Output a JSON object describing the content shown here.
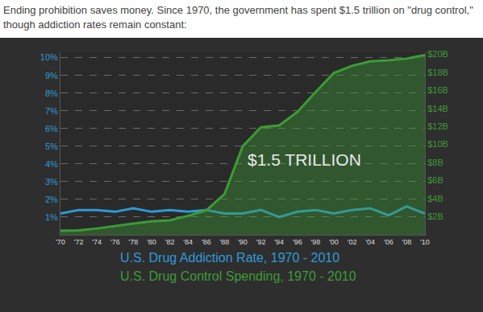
{
  "chart_data": {
    "type": "line",
    "title": "Ending prohibition saves money. Since 1970, the government has spent $1.5 trillion on \"drug control,\" though addiction rates remain constant:",
    "x": [
      1970,
      1972,
      1974,
      1976,
      1978,
      1980,
      1982,
      1984,
      1986,
      1988,
      1990,
      1992,
      1994,
      1996,
      1998,
      2000,
      2002,
      2004,
      2006,
      2008,
      2010
    ],
    "series": [
      {
        "name": "U.S. Drug Addiction Rate, 1970 - 2010",
        "type": "line",
        "color": "#2e9ad6",
        "line_style": "solid",
        "values": [
          1.2,
          1.4,
          1.4,
          1.3,
          1.5,
          1.3,
          1.4,
          1.3,
          1.4,
          1.2,
          1.2,
          1.4,
          1.0,
          1.3,
          1.4,
          1.2,
          1.4,
          1.5,
          1.1,
          1.6,
          1.2
        ]
      },
      {
        "name": "U.S. Drug Control Spending, 1970 - 2010",
        "type": "area",
        "color": "#3d9b35",
        "line_style": "solid",
        "axis": "y2",
        "values": [
          0.45,
          0.5,
          0.7,
          1.0,
          1.25,
          1.5,
          1.6,
          2.1,
          2.7,
          4.5,
          9.8,
          11.9,
          12.1,
          13.6,
          15.8,
          17.9,
          18.7,
          19.2,
          19.3,
          19.5,
          19.9
        ]
      }
    ],
    "xlim": [
      1970,
      2010
    ],
    "xticks": [
      {
        "value": 1970,
        "label": "'70"
      },
      {
        "value": 1972,
        "label": "'72"
      },
      {
        "value": 1974,
        "label": "'74"
      },
      {
        "value": 1976,
        "label": "'76"
      },
      {
        "value": 1978,
        "label": "'78"
      },
      {
        "value": 1980,
        "label": "'80"
      },
      {
        "value": 1982,
        "label": "'82"
      },
      {
        "value": 1984,
        "label": "'84"
      },
      {
        "value": 1986,
        "label": "'86"
      },
      {
        "value": 1988,
        "label": "'88"
      },
      {
        "value": 1990,
        "label": "'90"
      },
      {
        "value": 1992,
        "label": "'92"
      },
      {
        "value": 1994,
        "label": "'94"
      },
      {
        "value": 1996,
        "label": "'96"
      },
      {
        "value": 1998,
        "label": "'98"
      },
      {
        "value": 2000,
        "label": "'00"
      },
      {
        "value": 2002,
        "label": "'02"
      },
      {
        "value": 2004,
        "label": "'04"
      },
      {
        "value": 2006,
        "label": "'06"
      },
      {
        "value": 2008,
        "label": "'08"
      },
      {
        "value": 2010,
        "label": "'10"
      }
    ],
    "ylim": [
      0,
      10.3
    ],
    "yticks": [
      {
        "value": 1,
        "label": "1%"
      },
      {
        "value": 2,
        "label": "2%"
      },
      {
        "value": 3,
        "label": "3%"
      },
      {
        "value": 4,
        "label": "4%"
      },
      {
        "value": 5,
        "label": "5%"
      },
      {
        "value": 6,
        "label": "6%"
      },
      {
        "value": 7,
        "label": "7%"
      },
      {
        "value": 8,
        "label": "8%"
      },
      {
        "value": 9,
        "label": "9%"
      },
      {
        "value": 10,
        "label": "10%"
      }
    ],
    "y2lim": [
      0,
      20.2
    ],
    "y2ticks": [
      {
        "value": 2,
        "label": "$2B"
      },
      {
        "value": 4,
        "label": "$4B"
      },
      {
        "value": 6,
        "label": "$6B"
      },
      {
        "value": 8,
        "label": "$8B"
      },
      {
        "value": 10,
        "label": "$10B"
      },
      {
        "value": 12,
        "label": "$12B"
      },
      {
        "value": 14,
        "label": "$14B"
      },
      {
        "value": 16,
        "label": "$16B"
      },
      {
        "value": 18,
        "label": "$18B"
      },
      {
        "value": 20,
        "label": "$20B"
      }
    ],
    "grid": true,
    "annotations": [
      "$1.5 TRILLION"
    ]
  }
}
